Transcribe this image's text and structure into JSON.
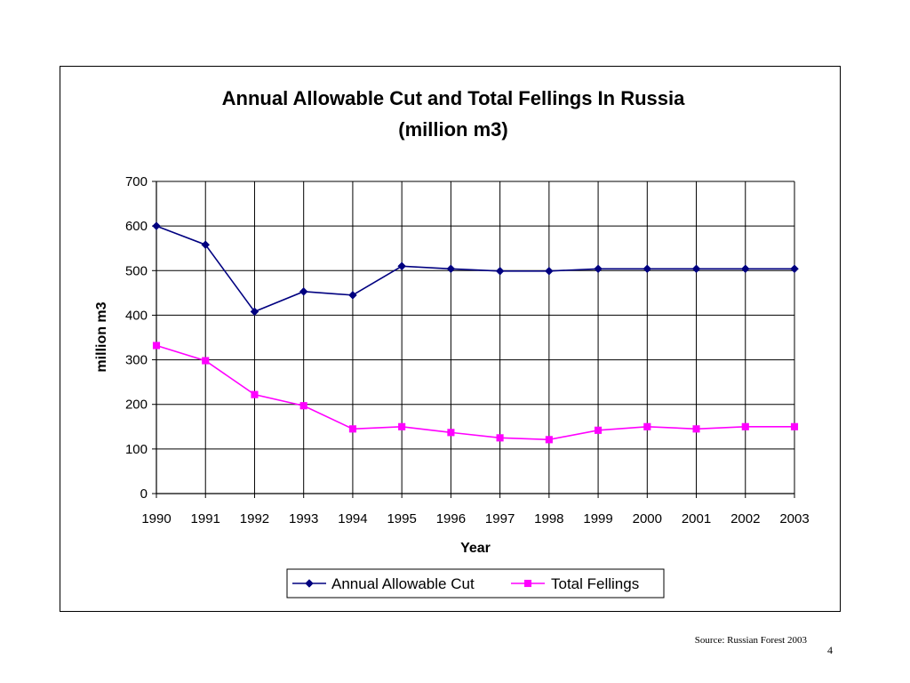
{
  "chart_data": {
    "type": "line",
    "title": "Annual Allowable Cut and Total Fellings In Russia",
    "subtitle": "(million m3)",
    "xlabel": "Year",
    "ylabel": "million m3",
    "ylim": [
      0,
      700
    ],
    "yticks": [
      0,
      100,
      200,
      300,
      400,
      500,
      600,
      700
    ],
    "categories": [
      "1990",
      "1991",
      "1992",
      "1993",
      "1994",
      "1995",
      "1996",
      "1997",
      "1998",
      "1999",
      "2000",
      "2001",
      "2002",
      "2003"
    ],
    "grid": true,
    "legend_position": "bottom",
    "series": [
      {
        "name": "Annual Allowable Cut",
        "color": "#000080",
        "marker": "diamond",
        "values": [
          600,
          558,
          408,
          453,
          445,
          510,
          504,
          499,
          499,
          504,
          504,
          504,
          504,
          504
        ]
      },
      {
        "name": "Total Fellings",
        "color": "#FF00FF",
        "marker": "square",
        "values": [
          332,
          298,
          222,
          197,
          145,
          150,
          137,
          125,
          121,
          142,
          150,
          145,
          150,
          150
        ]
      }
    ]
  },
  "footer": {
    "source": "Source: Russian Forest 2003",
    "page_number": "4"
  }
}
